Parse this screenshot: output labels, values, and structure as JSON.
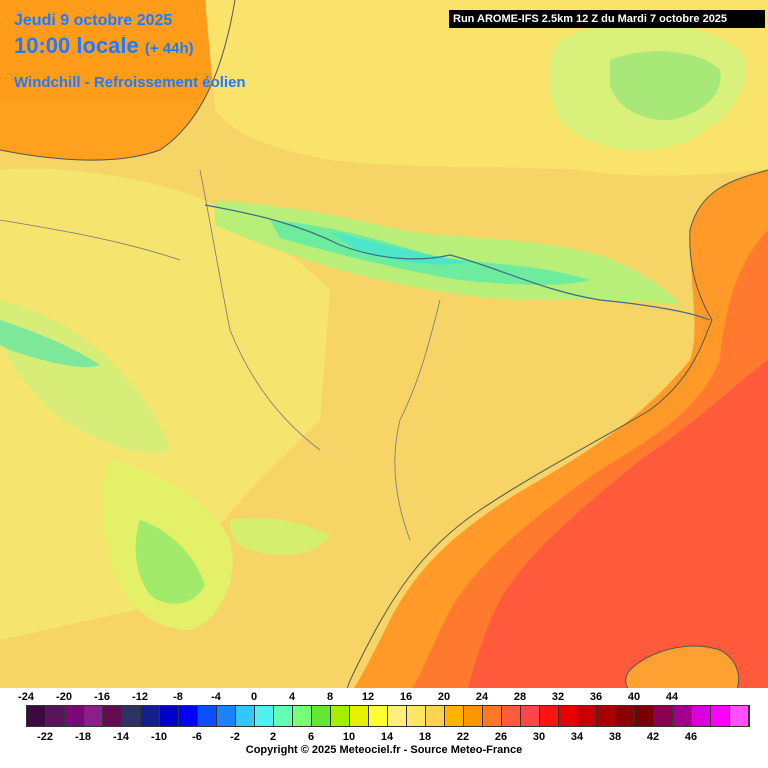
{
  "header": {
    "date": "Jeudi 9 octobre 2025",
    "time": "10:00 locale",
    "offset": "(+ 44h)",
    "parameter": "Windchill - Refroissement éolien"
  },
  "run_label": "Run AROME-IFS 2.5km 12 Z du Mardi 7 octobre 2025",
  "legend": {
    "top_labels": [
      "-24",
      "-20",
      "-16",
      "-12",
      "-8",
      "-4",
      "0",
      "4",
      "8",
      "12",
      "16",
      "20",
      "24",
      "28",
      "32",
      "36",
      "40",
      "44"
    ],
    "bottom_labels": [
      "-22",
      "-18",
      "-14",
      "-10",
      "-6",
      "-2",
      "2",
      "6",
      "10",
      "14",
      "18",
      "22",
      "26",
      "30",
      "34",
      "38",
      "42",
      "46"
    ],
    "colors": [
      "#3c0a3c",
      "#5a145a",
      "#780a78",
      "#8c1e8c",
      "#640a50",
      "#2d3264",
      "#141e8c",
      "#0000c8",
      "#0000ff",
      "#0a50ff",
      "#1e82ff",
      "#32c8ff",
      "#50f0f0",
      "#64ffb4",
      "#78ff78",
      "#64e632",
      "#a0f000",
      "#e6f000",
      "#ffff32",
      "#fff07d",
      "#ffe664",
      "#ffd250",
      "#ffb400",
      "#ff9600",
      "#ff7828",
      "#ff5a3c",
      "#ff4646",
      "#ff1414",
      "#e60000",
      "#c80000",
      "#aa0000",
      "#8c0000",
      "#780000",
      "#8c0050",
      "#a0008c",
      "#dc00dc",
      "#ff00ff",
      "#ff50ff"
    ]
  },
  "copyright": "Copyright © 2025 Meteociel.fr - Source Meteo-France"
}
